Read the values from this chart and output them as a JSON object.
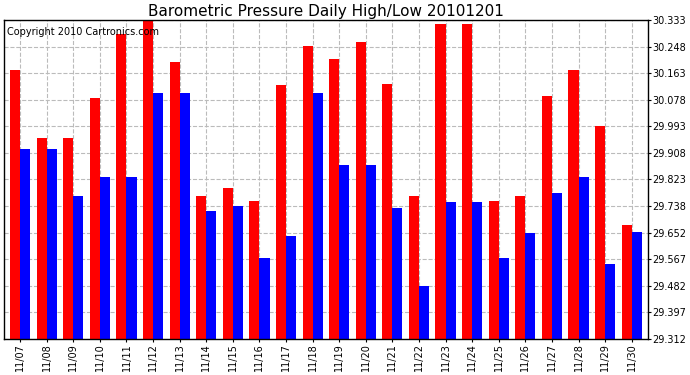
{
  "title": "Barometric Pressure Daily High/Low 20101201",
  "copyright": "Copyright 2010 Cartronics.com",
  "dates": [
    "11/07",
    "11/08",
    "11/09",
    "11/10",
    "11/11",
    "11/12",
    "11/13",
    "11/14",
    "11/15",
    "11/16",
    "11/17",
    "11/18",
    "11/19",
    "11/20",
    "11/21",
    "11/22",
    "11/23",
    "11/24",
    "11/25",
    "11/26",
    "11/27",
    "11/28",
    "11/29",
    "11/30"
  ],
  "highs": [
    30.175,
    29.955,
    29.955,
    30.085,
    30.29,
    30.333,
    30.2,
    29.768,
    29.795,
    29.755,
    30.125,
    30.25,
    30.21,
    30.265,
    30.13,
    29.77,
    30.32,
    30.32,
    29.755,
    29.768,
    30.09,
    30.175,
    29.995,
    29.675
  ],
  "lows": [
    29.92,
    29.92,
    29.768,
    29.83,
    29.83,
    30.1,
    30.1,
    29.72,
    29.738,
    29.57,
    29.64,
    30.1,
    29.868,
    29.868,
    29.73,
    29.48,
    29.75,
    29.75,
    29.57,
    29.65,
    29.78,
    29.83,
    29.55,
    29.655
  ],
  "ymin": 29.312,
  "ymax": 30.333,
  "yticks": [
    29.312,
    29.397,
    29.482,
    29.567,
    29.652,
    29.738,
    29.823,
    29.908,
    29.993,
    30.078,
    30.163,
    30.248,
    30.333
  ],
  "bar_width": 0.38,
  "high_color": "#ff0000",
  "low_color": "#0000ff",
  "bg_color": "#ffffff",
  "grid_color": "#bbbbbb",
  "title_fontsize": 11,
  "copyright_fontsize": 7,
  "tick_fontsize": 7,
  "xlabel_rotation": 90
}
